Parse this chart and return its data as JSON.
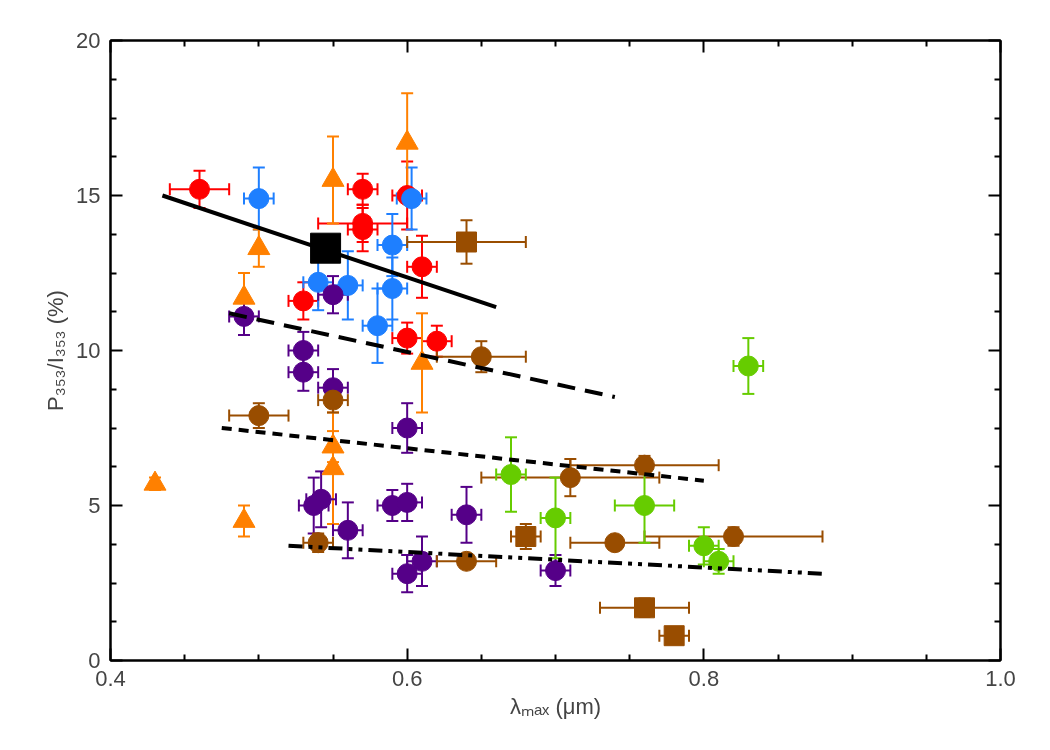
{
  "chart_data": {
    "type": "scatter",
    "xlabel": "λₘₐₓ (μm)",
    "ylabel": "P₃₅₃/I₃₅₃ (%)",
    "xlim": [
      0.4,
      1.0
    ],
    "ylim": [
      0,
      20
    ],
    "xticks": [
      0.4,
      0.6,
      0.8,
      {
        "value": 1.0,
        "label": "1.0"
      }
    ],
    "yticks": [
      0,
      5,
      10,
      15,
      20
    ],
    "grid": false,
    "series": [
      {
        "color": "#ff0000",
        "marker": "circle",
        "x": [
          0.46,
          0.57,
          0.57,
          0.57,
          0.6,
          0.61,
          0.53,
          0.6,
          0.62
        ],
        "values": [
          15.2,
          15.2,
          14.1,
          13.9,
          15.0,
          12.7,
          11.6,
          10.4,
          10.3
        ],
        "errors": [
          0.6,
          0.5,
          0.6,
          0.7,
          1.1,
          1.0,
          0.6,
          0.5,
          0.5
        ],
        "xerrors": [
          0.02,
          0.01,
          0.03,
          0.01,
          0.01,
          0.01,
          0.01,
          0.01,
          0.01
        ]
      },
      {
        "color": "#1e7fff",
        "marker": "circle",
        "x": [
          0.5,
          0.603,
          0.59,
          0.54,
          0.56,
          0.59,
          0.58
        ],
        "values": [
          14.9,
          14.9,
          13.4,
          12.2,
          12.1,
          12.0,
          10.8
        ],
        "errors": [
          1.0,
          1.0,
          1.0,
          0.9,
          1.1,
          1.0,
          1.2
        ],
        "xerrors": [
          0.01,
          0.01,
          0.01,
          0.01,
          0.01,
          0.01,
          0.01
        ]
      },
      {
        "color": "#ff8000",
        "marker": "triangle",
        "x": [
          0.43,
          0.49,
          0.49,
          0.5,
          0.55,
          0.6,
          0.61,
          0.55,
          0.55
        ],
        "values": [
          5.7,
          4.5,
          11.7,
          13.3,
          15.5,
          16.7,
          9.6,
          6.9,
          6.2
        ],
        "errors": [
          0.2,
          0.5,
          0.8,
          0.6,
          1.4,
          1.6,
          1.6,
          0.5,
          1.8
        ]
      },
      {
        "color": "#550088",
        "marker": "circle",
        "x": [
          0.55,
          0.53,
          0.53,
          0.55,
          0.6,
          0.542,
          0.537,
          0.56,
          0.59,
          0.6,
          0.64,
          0.6,
          0.61,
          0.7,
          0.49
        ],
        "values": [
          11.8,
          10.0,
          9.3,
          8.8,
          7.5,
          5.2,
          5.0,
          4.2,
          5.0,
          5.1,
          4.7,
          2.8,
          3.2,
          2.9,
          11.1
        ],
        "errors": [
          0.6,
          0.6,
          0.6,
          0.6,
          0.8,
          0.9,
          0.9,
          0.9,
          0.5,
          0.6,
          0.9,
          0.6,
          0.8,
          0.5,
          0.6
        ],
        "xerrors": [
          0.01,
          0.01,
          0.01,
          0.01,
          0.01,
          0.01,
          0.01,
          0.01,
          0.01,
          0.01,
          0.01,
          0.01,
          0.01,
          0.01,
          0.01
        ]
      },
      {
        "color": "#994d00",
        "marker": "circle",
        "x": [
          0.5,
          0.55,
          0.65,
          0.76,
          0.71,
          0.74,
          0.82,
          0.64,
          0.54
        ],
        "values": [
          7.9,
          8.4,
          9.8,
          6.3,
          5.9,
          3.8,
          4.0,
          3.2,
          3.8
        ],
        "errors": [
          0.4,
          0.4,
          0.5,
          0.3,
          0.6,
          0.2,
          0.3,
          0.2,
          0.3
        ],
        "xerrors": [
          0.02,
          0.01,
          0.03,
          0.05,
          0.06,
          0.03,
          0.06,
          0.02,
          0.01
        ]
      },
      {
        "color": "#994d00",
        "marker": "square",
        "x": [
          0.64,
          0.68,
          0.76,
          0.78
        ],
        "values": [
          13.5,
          4.0,
          1.7,
          0.8
        ],
        "errors": [
          0.7,
          0.4,
          0.3,
          0.2
        ],
        "xerrors": [
          0.04,
          0.01,
          0.03,
          0.01
        ]
      },
      {
        "color": "#66cc00",
        "marker": "circle",
        "x": [
          0.83,
          0.67,
          0.7,
          0.76,
          0.8,
          0.81
        ],
        "values": [
          9.5,
          6.0,
          4.6,
          5.0,
          3.7,
          3.2
        ],
        "errors": [
          0.9,
          1.2,
          1.3,
          1.2,
          0.6,
          0.4
        ],
        "xerrors": [
          0.01,
          0.01,
          0.01,
          0.02,
          0.01,
          0.01
        ]
      },
      {
        "color": "#000000",
        "marker": "square",
        "x": [
          0.545
        ],
        "values": [
          13.3
        ]
      },
      {
        "type": "line",
        "color": "#000000",
        "line_style": "solid",
        "x": [
          0.435,
          0.66
        ],
        "values": [
          15.0,
          11.4
        ]
      },
      {
        "type": "line",
        "color": "#000000",
        "line_style": "dashed",
        "x": [
          0.48,
          0.74
        ],
        "values": [
          11.2,
          8.5
        ]
      },
      {
        "type": "line",
        "color": "#000000",
        "line_style": "short-dashed",
        "x": [
          0.475,
          0.8
        ],
        "values": [
          7.5,
          5.8
        ]
      },
      {
        "type": "line",
        "color": "#000000",
        "line_style": "dash-dot-dot",
        "x": [
          0.52,
          0.88
        ],
        "values": [
          3.7,
          2.8
        ]
      }
    ]
  }
}
